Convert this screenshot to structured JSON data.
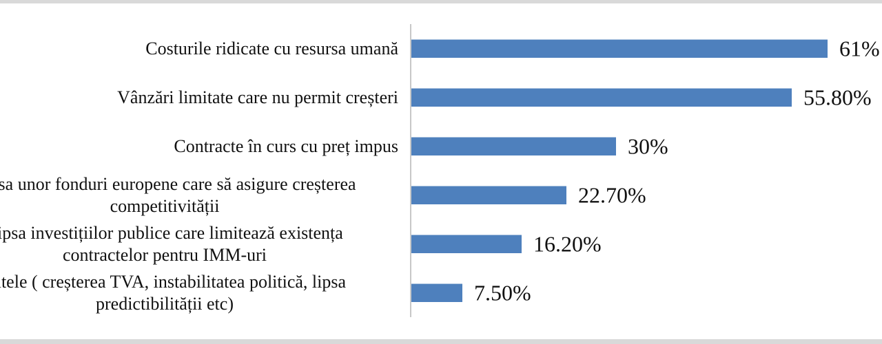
{
  "page": {
    "background": "#ffffff",
    "edge_band_color": "#d9d9d9"
  },
  "chart_data": {
    "type": "bar",
    "orientation": "horizontal",
    "title": "",
    "xlabel": "",
    "ylabel": "",
    "xlim": [
      0,
      65
    ],
    "grid": false,
    "legend": false,
    "bar_color": "#4e80bd",
    "axis_line_color": "#c8c8c8",
    "value_label_position": "end-of-bar",
    "categories": [
      "Costurile ridicate cu resursa umană",
      "Vânzări limitate care nu permit creșteri",
      "Contracte în curs cu preț impus",
      "Lipsa unor fonduri europene care să asigure creșterea competitivității",
      "Lipsa investițiilor publice care limitează existența contractelor pentru IMM-uri",
      "Altele ( creșterea TVA, instabilitatea politică, lipsa predictibilității etc)"
    ],
    "display_labels": [
      "Costurile ridicate cu resursa umană",
      "Vânzări limitate care nu permit creșteri",
      "Contracte în curs cu preț impus",
      "Lipsa unor fonduri europene care să asigure creșterea\ncompetitivității",
      "Lipsa investițiilor publice care limitează existența\ncontractelor pentru IMM-uri",
      "Altele ( creșterea TVA, instabilitatea politică, lipsa\npredictibilității etc)"
    ],
    "values": [
      61,
      55.8,
      30,
      22.7,
      16.2,
      7.5
    ],
    "value_labels": [
      "61%",
      "55.80%",
      "30%",
      "22.70%",
      "16.20%",
      "7.50%"
    ]
  }
}
